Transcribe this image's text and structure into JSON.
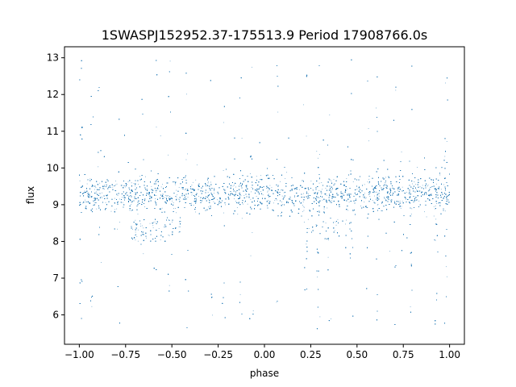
{
  "chart_data": {
    "type": "scatter",
    "title": "1SWASPJ152952.37-175513.9 Period 17908766.0s",
    "xlabel": "phase",
    "ylabel": "flux",
    "xlim": [
      -1.08,
      1.08
    ],
    "ylim": [
      5.2,
      13.3
    ],
    "x_ticks": [
      -1.0,
      -0.75,
      -0.5,
      -0.25,
      0.0,
      0.25,
      0.5,
      0.75,
      1.0
    ],
    "x_tick_labels": [
      "−1.00",
      "−0.75",
      "−0.50",
      "−0.25",
      "0.00",
      "0.25",
      "0.50",
      "0.75",
      "1.00"
    ],
    "y_ticks": [
      6,
      7,
      8,
      9,
      10,
      11,
      12,
      13
    ],
    "y_tick_labels": [
      "6",
      "7",
      "8",
      "9",
      "10",
      "11",
      "12",
      "13"
    ],
    "grid": false,
    "legend": "none",
    "marker_color": "#1f77b4",
    "phase_range": [
      -1.0,
      1.0
    ],
    "core_flux": {
      "center": 9.3,
      "low": 8.6,
      "high": 10.0
    },
    "flux_extent": [
      5.6,
      13.0
    ],
    "low_flux_dips": [
      {
        "phase_range": [
          -0.72,
          -0.6
        ],
        "flux_range": [
          8.0,
          8.6
        ]
      },
      {
        "phase_range": [
          -0.62,
          -0.45
        ],
        "flux_range": [
          8.0,
          8.6
        ]
      },
      {
        "phase_range": [
          0.22,
          0.48
        ],
        "flux_range": [
          8.0,
          8.6
        ]
      }
    ],
    "spike_phases": [
      -0.99,
      -0.93,
      -0.89,
      -0.79,
      -0.66,
      -0.59,
      -0.51,
      -0.42,
      -0.29,
      -0.22,
      -0.13,
      -0.07,
      0.07,
      0.22,
      0.29,
      0.35,
      0.47,
      0.56,
      0.61,
      0.7,
      0.79,
      0.93,
      0.98
    ],
    "n_points": 16000
  }
}
